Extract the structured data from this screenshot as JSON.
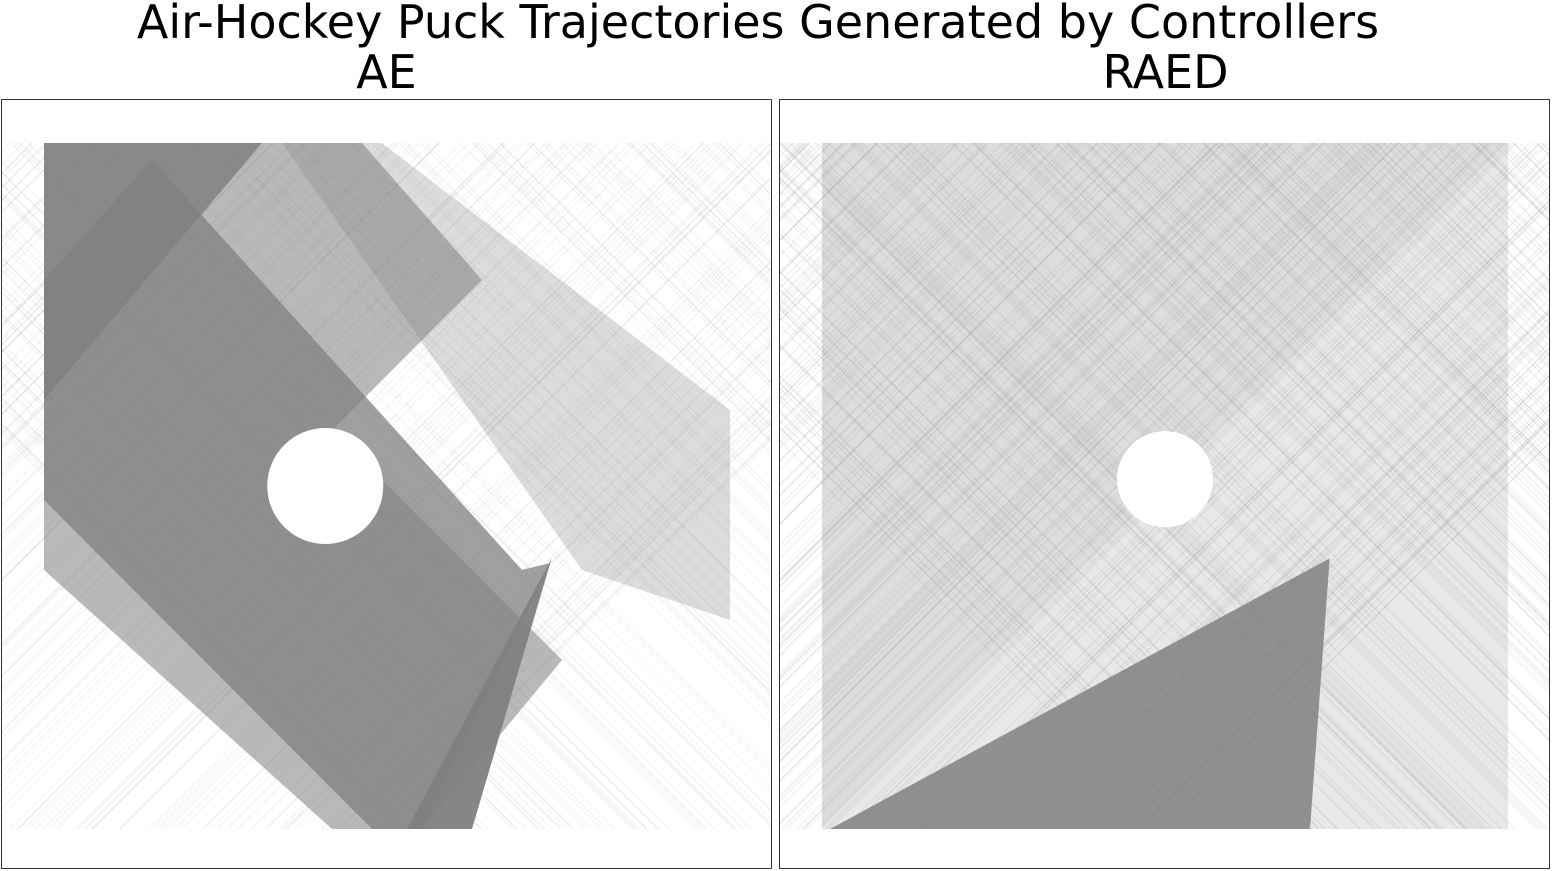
{
  "figure": {
    "title": "Air-Hockey Puck Trajectories Generated by Controllers"
  },
  "chart_data": [
    {
      "type": "line",
      "title": "AE",
      "xlabel": "",
      "ylabel": "",
      "axes_visible": false,
      "grid": false,
      "table_extent": {
        "x": [
          0,
          1
        ],
        "y": [
          0,
          1
        ]
      },
      "line_color": "#808080",
      "background": "#ffffff",
      "empty_region_center": [
        0.41,
        0.5
      ],
      "convergence_point": [
        0.74,
        0.38
      ],
      "series": []
    },
    {
      "type": "line",
      "title": "RAED",
      "xlabel": "",
      "ylabel": "",
      "axes_visible": false,
      "grid": false,
      "table_extent": {
        "x": [
          0,
          1
        ],
        "y": [
          0,
          1
        ]
      },
      "line_color": "#808080",
      "background": "#ffffff",
      "empty_region_center": [
        0.5,
        0.51
      ],
      "convergence_point": [
        0.74,
        0.38
      ],
      "series": []
    }
  ]
}
